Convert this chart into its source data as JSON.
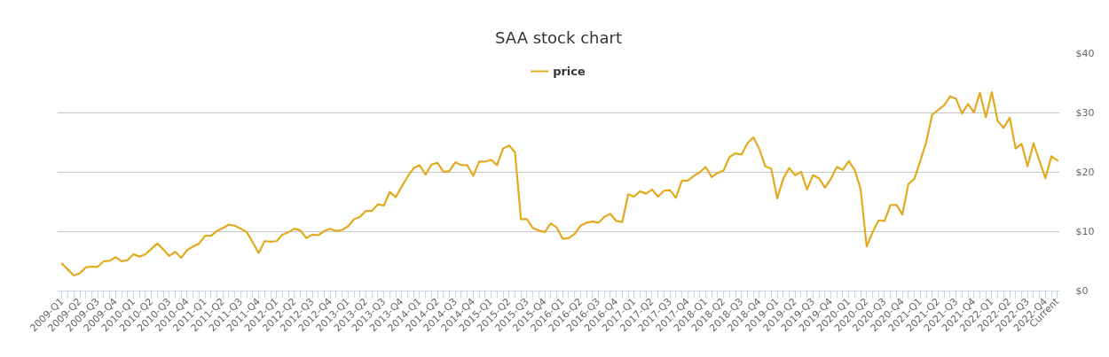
{
  "chart_data": {
    "type": "line",
    "title": "SAA stock chart",
    "categories": [
      "2009-Q1",
      null,
      null,
      "2009-Q2",
      null,
      null,
      "2009-Q3",
      null,
      null,
      "2009-Q4",
      null,
      null,
      "2010-Q1",
      null,
      null,
      "2010-Q2",
      null,
      null,
      "2010-Q3",
      null,
      null,
      "2010-Q4",
      null,
      null,
      "2011-Q1",
      null,
      null,
      "2011-Q2",
      null,
      null,
      "2011-Q3",
      null,
      null,
      "2011-Q4",
      null,
      null,
      "2012-Q1",
      null,
      null,
      "2012-Q2",
      null,
      null,
      "2012-Q3",
      null,
      null,
      "2012-Q4",
      null,
      null,
      "2013-Q1",
      null,
      null,
      "2013-Q2",
      null,
      null,
      "2013-Q3",
      null,
      null,
      "2013-Q4",
      null,
      null,
      "2014-Q1",
      null,
      null,
      "2014-Q2",
      null,
      null,
      "2014-Q3",
      null,
      null,
      "2014-Q4",
      null,
      null,
      "2015-Q1",
      null,
      null,
      "2015-Q2",
      null,
      null,
      "2015-Q3",
      null,
      null,
      "2015-Q4",
      null,
      null,
      "2016-Q1",
      null,
      null,
      "2016-Q2",
      null,
      null,
      "2016-Q3",
      null,
      null,
      "2016-Q4",
      null,
      null,
      "2017-Q1",
      null,
      null,
      "2017-Q2",
      null,
      null,
      "2017-Q3",
      null,
      null,
      "2017-Q4",
      null,
      null,
      "2018-Q1",
      null,
      null,
      "2018-Q2",
      null,
      null,
      "2018-Q3",
      null,
      null,
      "2018-Q4",
      null,
      null,
      "2019-Q1",
      null,
      null,
      "2019-Q2",
      null,
      null,
      "2019-Q3",
      null,
      null,
      "2019-Q4",
      null,
      null,
      "2020-Q1",
      null,
      null,
      "2020-Q2",
      null,
      null,
      "2020-Q3",
      null,
      null,
      "2020-Q4",
      null,
      null,
      "2021-Q1",
      null,
      null,
      "2021-Q2",
      null,
      null,
      "2021-Q3",
      null,
      null,
      "2021-Q4",
      null,
      null,
      "2022-Q1",
      null,
      null,
      "2022-Q2",
      null,
      null,
      "2022-Q3",
      null,
      null,
      "2022-Q4",
      null,
      "Current"
    ],
    "series": [
      {
        "name": "price",
        "color": "#e3aa1f",
        "values": [
          4.6,
          3.6,
          2.6,
          3.0,
          4.0,
          4.1,
          4.1,
          5.0,
          5.1,
          5.7,
          5.0,
          5.2,
          6.2,
          5.8,
          6.2,
          7.1,
          8.0,
          7.0,
          5.9,
          6.6,
          5.6,
          6.9,
          7.5,
          8.0,
          9.3,
          9.3,
          10.1,
          10.6,
          11.2,
          11.0,
          10.5,
          9.9,
          8.2,
          6.4,
          8.4,
          8.3,
          8.4,
          9.5,
          9.9,
          10.5,
          10.2,
          8.9,
          9.5,
          9.4,
          10.1,
          10.5,
          10.1,
          10.3,
          10.9,
          12.1,
          12.5,
          13.5,
          13.5,
          14.6,
          14.4,
          16.7,
          15.8,
          17.6,
          19.3,
          20.7,
          21.2,
          19.6,
          21.3,
          21.6,
          20.1,
          20.2,
          21.7,
          21.2,
          21.2,
          19.4,
          21.8,
          21.8,
          22.1,
          21.2,
          24.0,
          24.5,
          23.4,
          12.1,
          12.1,
          10.6,
          10.2,
          9.9,
          11.4,
          10.7,
          8.8,
          8.9,
          9.6,
          11.0,
          11.5,
          11.7,
          11.5,
          12.5,
          13.0,
          11.8,
          11.6,
          16.3,
          15.9,
          16.8,
          16.4,
          17.1,
          15.9,
          16.9,
          17.0,
          15.7,
          18.6,
          18.6,
          19.4,
          20.0,
          20.9,
          19.2,
          19.9,
          20.3,
          22.6,
          23.2,
          23.0,
          24.9,
          25.9,
          23.9,
          21.0,
          20.6,
          15.6,
          18.9,
          20.7,
          19.5,
          20.1,
          17.1,
          19.5,
          19.0,
          17.4,
          18.9,
          20.9,
          20.4,
          21.9,
          20.4,
          17.1,
          7.5,
          9.9,
          11.9,
          11.8,
          14.5,
          14.5,
          12.9,
          18.0,
          18.9,
          21.9,
          25.1,
          29.7,
          30.5,
          31.3,
          32.8,
          32.4,
          29.9,
          31.5,
          30.1,
          33.4,
          29.3,
          33.5,
          28.6,
          27.5,
          29.2,
          24.0,
          24.8,
          21.0,
          24.9,
          21.9,
          19.0,
          22.7,
          22.0
        ]
      }
    ],
    "ylim": [
      0,
      40
    ],
    "yticks": [
      {
        "value": 0,
        "label": "$0"
      },
      {
        "value": 10,
        "label": "$10"
      },
      {
        "value": 20,
        "label": "$20"
      },
      {
        "value": 30,
        "label": "$30"
      },
      {
        "value": 40,
        "label": "$40"
      }
    ],
    "grid": "y",
    "legend": "top"
  }
}
